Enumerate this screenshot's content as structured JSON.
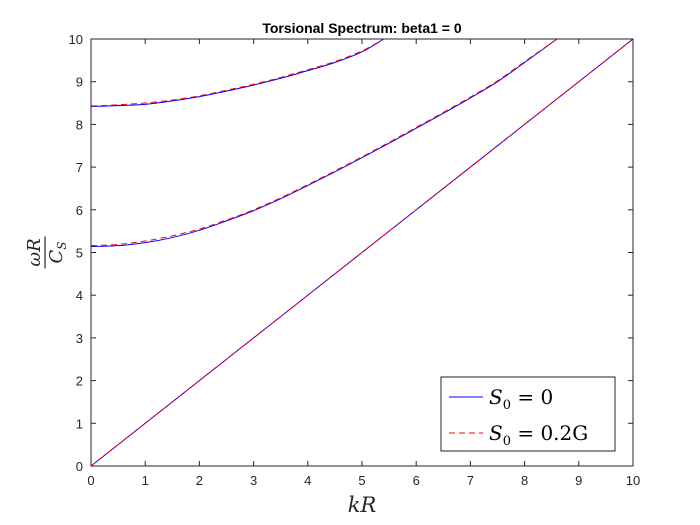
{
  "chart_data": {
    "type": "line",
    "title": "Torsional Spectrum: beta1 = 0",
    "xlabel": "kR",
    "ylabel": "ωR / C_S",
    "ylabel_parts": {
      "numerator": "ωR",
      "denominator_main": "C",
      "denominator_sub": "S"
    },
    "xlim": [
      0,
      10
    ],
    "ylim": [
      0,
      10
    ],
    "xticks": [
      "0",
      "1",
      "2",
      "3",
      "4",
      "5",
      "6",
      "7",
      "8",
      "9",
      "10"
    ],
    "yticks": [
      "0",
      "1",
      "2",
      "3",
      "4",
      "5",
      "6",
      "7",
      "8",
      "9",
      "10"
    ],
    "grid": false,
    "legend_position": "bottom-right",
    "series": [
      {
        "name": "S_0 = 0",
        "legend_main": "S",
        "legend_sub": "0",
        "legend_rest": " = 0",
        "color": "#0000ff",
        "style": "solid",
        "branches": [
          {
            "x": [
              0,
              10
            ],
            "y": [
              0,
              10
            ]
          },
          {
            "x": [
              0,
              0.5,
              1,
              1.5,
              2,
              2.5,
              3,
              3.5,
              4,
              4.5,
              5,
              5.5,
              6,
              6.5,
              7,
              7.5,
              8,
              8.6
            ],
            "y": [
              5.14,
              5.16,
              5.23,
              5.35,
              5.52,
              5.74,
              5.98,
              6.26,
              6.57,
              6.89,
              7.22,
              7.56,
              7.91,
              8.26,
              8.62,
              9.0,
              9.45,
              10.0
            ]
          },
          {
            "x": [
              0,
              0.5,
              1,
              1.5,
              2,
              2.5,
              3,
              3.5,
              4,
              4.5,
              5,
              5.4
            ],
            "y": [
              8.42,
              8.44,
              8.47,
              8.55,
              8.65,
              8.78,
              8.92,
              9.08,
              9.26,
              9.45,
              9.7,
              10.0
            ]
          }
        ]
      },
      {
        "name": "S_0 = 0.2G",
        "legend_main": "S",
        "legend_sub": "0",
        "legend_rest": " = 0.2G",
        "color": "#ff0000",
        "style": "dashed",
        "branches": [
          {
            "x": [
              0,
              10
            ],
            "y": [
              0,
              10
            ]
          },
          {
            "x": [
              0,
              0.5,
              1,
              1.5,
              2,
              2.5,
              3,
              3.5,
              4,
              4.5,
              5,
              5.5,
              6,
              6.5,
              7,
              7.5,
              8,
              8.6
            ],
            "y": [
              5.16,
              5.19,
              5.27,
              5.39,
              5.55,
              5.76,
              6.0,
              6.28,
              6.59,
              6.91,
              7.24,
              7.58,
              7.93,
              8.28,
              8.64,
              9.02,
              9.47,
              10.0
            ]
          },
          {
            "x": [
              0,
              0.5,
              1,
              1.5,
              2,
              2.5,
              3,
              3.5,
              4,
              4.5,
              5,
              5.4
            ],
            "y": [
              8.43,
              8.46,
              8.5,
              8.57,
              8.67,
              8.8,
              8.94,
              9.1,
              9.28,
              9.47,
              9.72,
              10.0
            ]
          }
        ]
      }
    ]
  }
}
